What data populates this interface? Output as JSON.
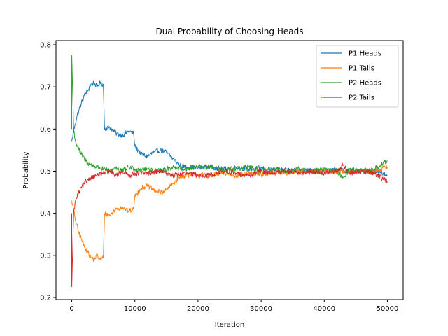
{
  "chart_data": {
    "type": "line",
    "title": "Dual Probability of Choosing Heads",
    "xlabel": "Iteration",
    "ylabel": "Probability",
    "xlim": [
      -2500,
      52500
    ],
    "ylim": [
      0.195,
      0.81
    ],
    "xticks": [
      0,
      10000,
      20000,
      30000,
      40000,
      50000
    ],
    "yticks": [
      0.2,
      0.3,
      0.4,
      0.5,
      0.6,
      0.7,
      0.8
    ],
    "xtick_labels": [
      "0",
      "10000",
      "20000",
      "30000",
      "40000",
      "50000"
    ],
    "ytick_labels": [
      "0.2",
      "0.3",
      "0.4",
      "0.5",
      "0.6",
      "0.7",
      "0.8"
    ],
    "grid": false,
    "legend_position": "top-right",
    "series": [
      {
        "name": "P1 Heads",
        "color": "#1f77b4",
        "x": [
          0,
          500,
          1000,
          1500,
          2000,
          2500,
          3000,
          3500,
          4000,
          4500,
          5000,
          5200,
          6000,
          7000,
          8000,
          9000,
          9800,
          10000,
          11000,
          12000,
          13000,
          14000,
          15000,
          16000,
          17000,
          18000,
          20000,
          22000,
          24000,
          26000,
          28000,
          30000,
          32000,
          34000,
          36000,
          38000,
          40000,
          42000,
          44000,
          46000,
          48000,
          50000
        ],
        "y": [
          0.57,
          0.61,
          0.64,
          0.66,
          0.68,
          0.69,
          0.705,
          0.71,
          0.7,
          0.71,
          0.705,
          0.6,
          0.605,
          0.59,
          0.585,
          0.595,
          0.59,
          0.56,
          0.54,
          0.535,
          0.545,
          0.55,
          0.545,
          0.53,
          0.515,
          0.51,
          0.508,
          0.51,
          0.505,
          0.51,
          0.505,
          0.508,
          0.502,
          0.505,
          0.5,
          0.502,
          0.5,
          0.503,
          0.5,
          0.5,
          0.5,
          0.49
        ]
      },
      {
        "name": "P1 Tails",
        "color": "#ff7f0e",
        "x": [
          0,
          500,
          1000,
          1500,
          2000,
          2500,
          3000,
          3500,
          4000,
          4500,
          5000,
          5200,
          6000,
          7000,
          8000,
          9000,
          9800,
          10000,
          11000,
          12000,
          13000,
          14000,
          15000,
          16000,
          17000,
          18000,
          20000,
          22000,
          24000,
          26000,
          28000,
          30000,
          32000,
          34000,
          36000,
          38000,
          40000,
          42000,
          44000,
          46000,
          48000,
          50000
        ],
        "y": [
          0.43,
          0.39,
          0.36,
          0.34,
          0.32,
          0.31,
          0.295,
          0.29,
          0.3,
          0.29,
          0.295,
          0.4,
          0.395,
          0.41,
          0.415,
          0.405,
          0.41,
          0.44,
          0.46,
          0.465,
          0.455,
          0.45,
          0.455,
          0.47,
          0.485,
          0.49,
          0.492,
          0.49,
          0.495,
          0.49,
          0.495,
          0.492,
          0.498,
          0.495,
          0.5,
          0.498,
          0.5,
          0.497,
          0.5,
          0.5,
          0.5,
          0.51
        ]
      },
      {
        "name": "P2 Heads",
        "color": "#2ca02c",
        "x": [
          0,
          0,
          300,
          600,
          1000,
          1500,
          2000,
          2500,
          3000,
          4000,
          5000,
          6000,
          7000,
          8000,
          9000,
          10000,
          12000,
          14000,
          16000,
          18000,
          20000,
          22000,
          24000,
          26000,
          28000,
          30000,
          32000,
          34000,
          36000,
          38000,
          40000,
          42000,
          43000,
          44000,
          46000,
          48000,
          50000
        ],
        "y": [
          0.6,
          0.775,
          0.6,
          0.57,
          0.555,
          0.54,
          0.53,
          0.52,
          0.515,
          0.51,
          0.505,
          0.5,
          0.51,
          0.5,
          0.51,
          0.505,
          0.505,
          0.5,
          0.51,
          0.505,
          0.51,
          0.51,
          0.5,
          0.505,
          0.51,
          0.5,
          0.505,
          0.5,
          0.505,
          0.5,
          0.505,
          0.5,
          0.485,
          0.505,
          0.5,
          0.505,
          0.525
        ]
      },
      {
        "name": "P2 Tails",
        "color": "#d62728",
        "x": [
          0,
          0,
          300,
          600,
          1000,
          1500,
          2000,
          2500,
          3000,
          4000,
          5000,
          6000,
          7000,
          8000,
          9000,
          10000,
          12000,
          14000,
          16000,
          18000,
          20000,
          22000,
          24000,
          26000,
          28000,
          30000,
          32000,
          34000,
          36000,
          38000,
          40000,
          42000,
          43000,
          44000,
          46000,
          48000,
          50000
        ],
        "y": [
          0.4,
          0.225,
          0.4,
          0.43,
          0.445,
          0.46,
          0.47,
          0.48,
          0.485,
          0.49,
          0.495,
          0.5,
          0.49,
          0.5,
          0.49,
          0.495,
          0.495,
          0.5,
          0.49,
          0.495,
          0.49,
          0.49,
          0.5,
          0.495,
          0.49,
          0.5,
          0.495,
          0.5,
          0.495,
          0.5,
          0.495,
          0.5,
          0.515,
          0.495,
          0.5,
          0.495,
          0.475
        ]
      }
    ]
  }
}
